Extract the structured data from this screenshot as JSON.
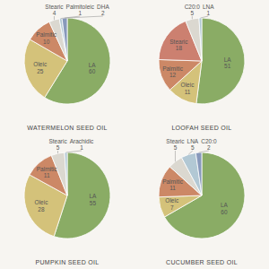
{
  "chart_data": [
    {
      "type": "pie",
      "title": "WATERMELON SEED OIL",
      "categories": [
        "LA",
        "Oleic",
        "Palmitic",
        "Stearic",
        "Palmitoleic",
        "DHA"
      ],
      "values": [
        60,
        25,
        10,
        4,
        1,
        2
      ],
      "colors": [
        "#8aac65",
        "#d4c27a",
        "#cc8866",
        "#dbd8d0",
        "#b2c8d4",
        "#8899bb"
      ],
      "data_labels": true
    },
    {
      "type": "pie",
      "title": "LOOFAH SEED OIL",
      "categories": [
        "LA",
        "Oleic",
        "Palmitic",
        "Stearic",
        "C20:0",
        "LNA"
      ],
      "values": [
        51,
        11,
        12,
        18,
        5,
        1
      ],
      "colors": [
        "#8aac65",
        "#d4c27a",
        "#cc8866",
        "#cc8070",
        "#dbd8d0",
        "#b2c8d4"
      ],
      "data_labels": true
    },
    {
      "type": "pie",
      "title": "PUMPKIN SEED OIL",
      "categories": [
        "LA",
        "Oleic",
        "Palmitic",
        "Stearic",
        "Arachidic"
      ],
      "values": [
        55,
        28,
        11,
        5,
        1
      ],
      "colors": [
        "#8aac65",
        "#d4c27a",
        "#cc8866",
        "#dbd8d0",
        "#b2c8d4"
      ],
      "data_labels": true
    },
    {
      "type": "pie",
      "title": "CUCUMBER SEED OIL",
      "categories": [
        "LA",
        "Oleic",
        "Palmitic",
        "Stearic",
        "LNA",
        "C20:0"
      ],
      "values": [
        60,
        7,
        11,
        5,
        5,
        2
      ],
      "colors": [
        "#8aac65",
        "#d4c27a",
        "#cc8866",
        "#dbd8d0",
        "#b2c8d4",
        "#8899bb"
      ],
      "data_labels": true
    }
  ]
}
